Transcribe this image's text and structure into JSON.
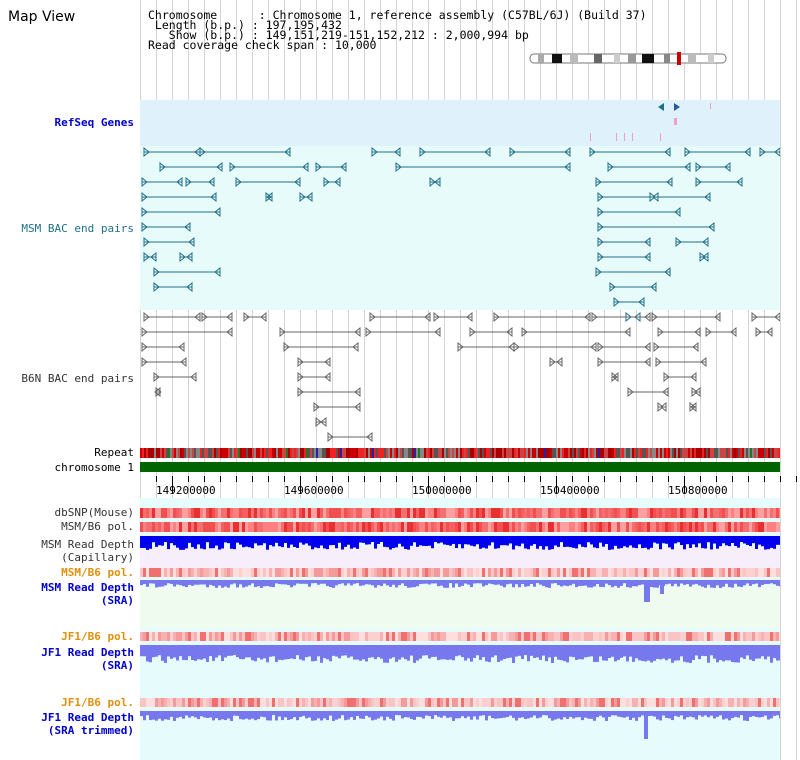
{
  "title": "Map View",
  "info": {
    "chromosome_label": "Chromosome      : ",
    "chromosome_value": "Chromosome 1, reference assembly (C57BL/6J) (Build 37)",
    "length_label": " Length (b.p.) : ",
    "length_value": "197,195,432",
    "show_label": "   Show (b.p.) : ",
    "show_value": "149,151,219-151,152,212 : 2,000,994 bp",
    "coverage_label": "Read coverage check span : ",
    "coverage_value": "10,000"
  },
  "tracks": {
    "refseq": "RefSeq Genes",
    "msm_bac": "MSM BAC end pairs",
    "b6n_bac": "B6N BAC end pairs",
    "repeat": "Repeat",
    "chromosome": "chromosome 1",
    "dbsnp": "dbSNP(Mouse)",
    "msm_b6_pol_1": "MSM/B6 pol.",
    "msm_depth_cap": "MSM Read Depth\n(Capillary)",
    "msm_b6_pol_2": "MSM/B6 pol.",
    "msm_depth_sra": "MSM Read Depth\n(SRA)",
    "jf1_b6_pol_1": "JF1/B6 pol.",
    "jf1_depth_sra": "JF1 Read Depth\n(SRA)",
    "jf1_b6_pol_2": "JF1/B6 pol.",
    "jf1_depth_trim": "JF1 Read Depth\n(SRA trimmed)"
  },
  "ruler": {
    "ticks": [
      "149200000",
      "149600000",
      "150000000",
      "150400000",
      "150800000"
    ]
  },
  "colors": {
    "refseq_bg": "#dff2fb",
    "bac_bg": "#e8fbfb",
    "msm_feature": "#1f6f87",
    "b6n_feature": "#666666",
    "chromosome_bar": "#006400",
    "label_blue": "#0000cc",
    "label_orange": "#e0900b",
    "label_teal": "#1f6f87",
    "depth_blue": "#0000ee",
    "depth_light": "#7777ee"
  }
}
